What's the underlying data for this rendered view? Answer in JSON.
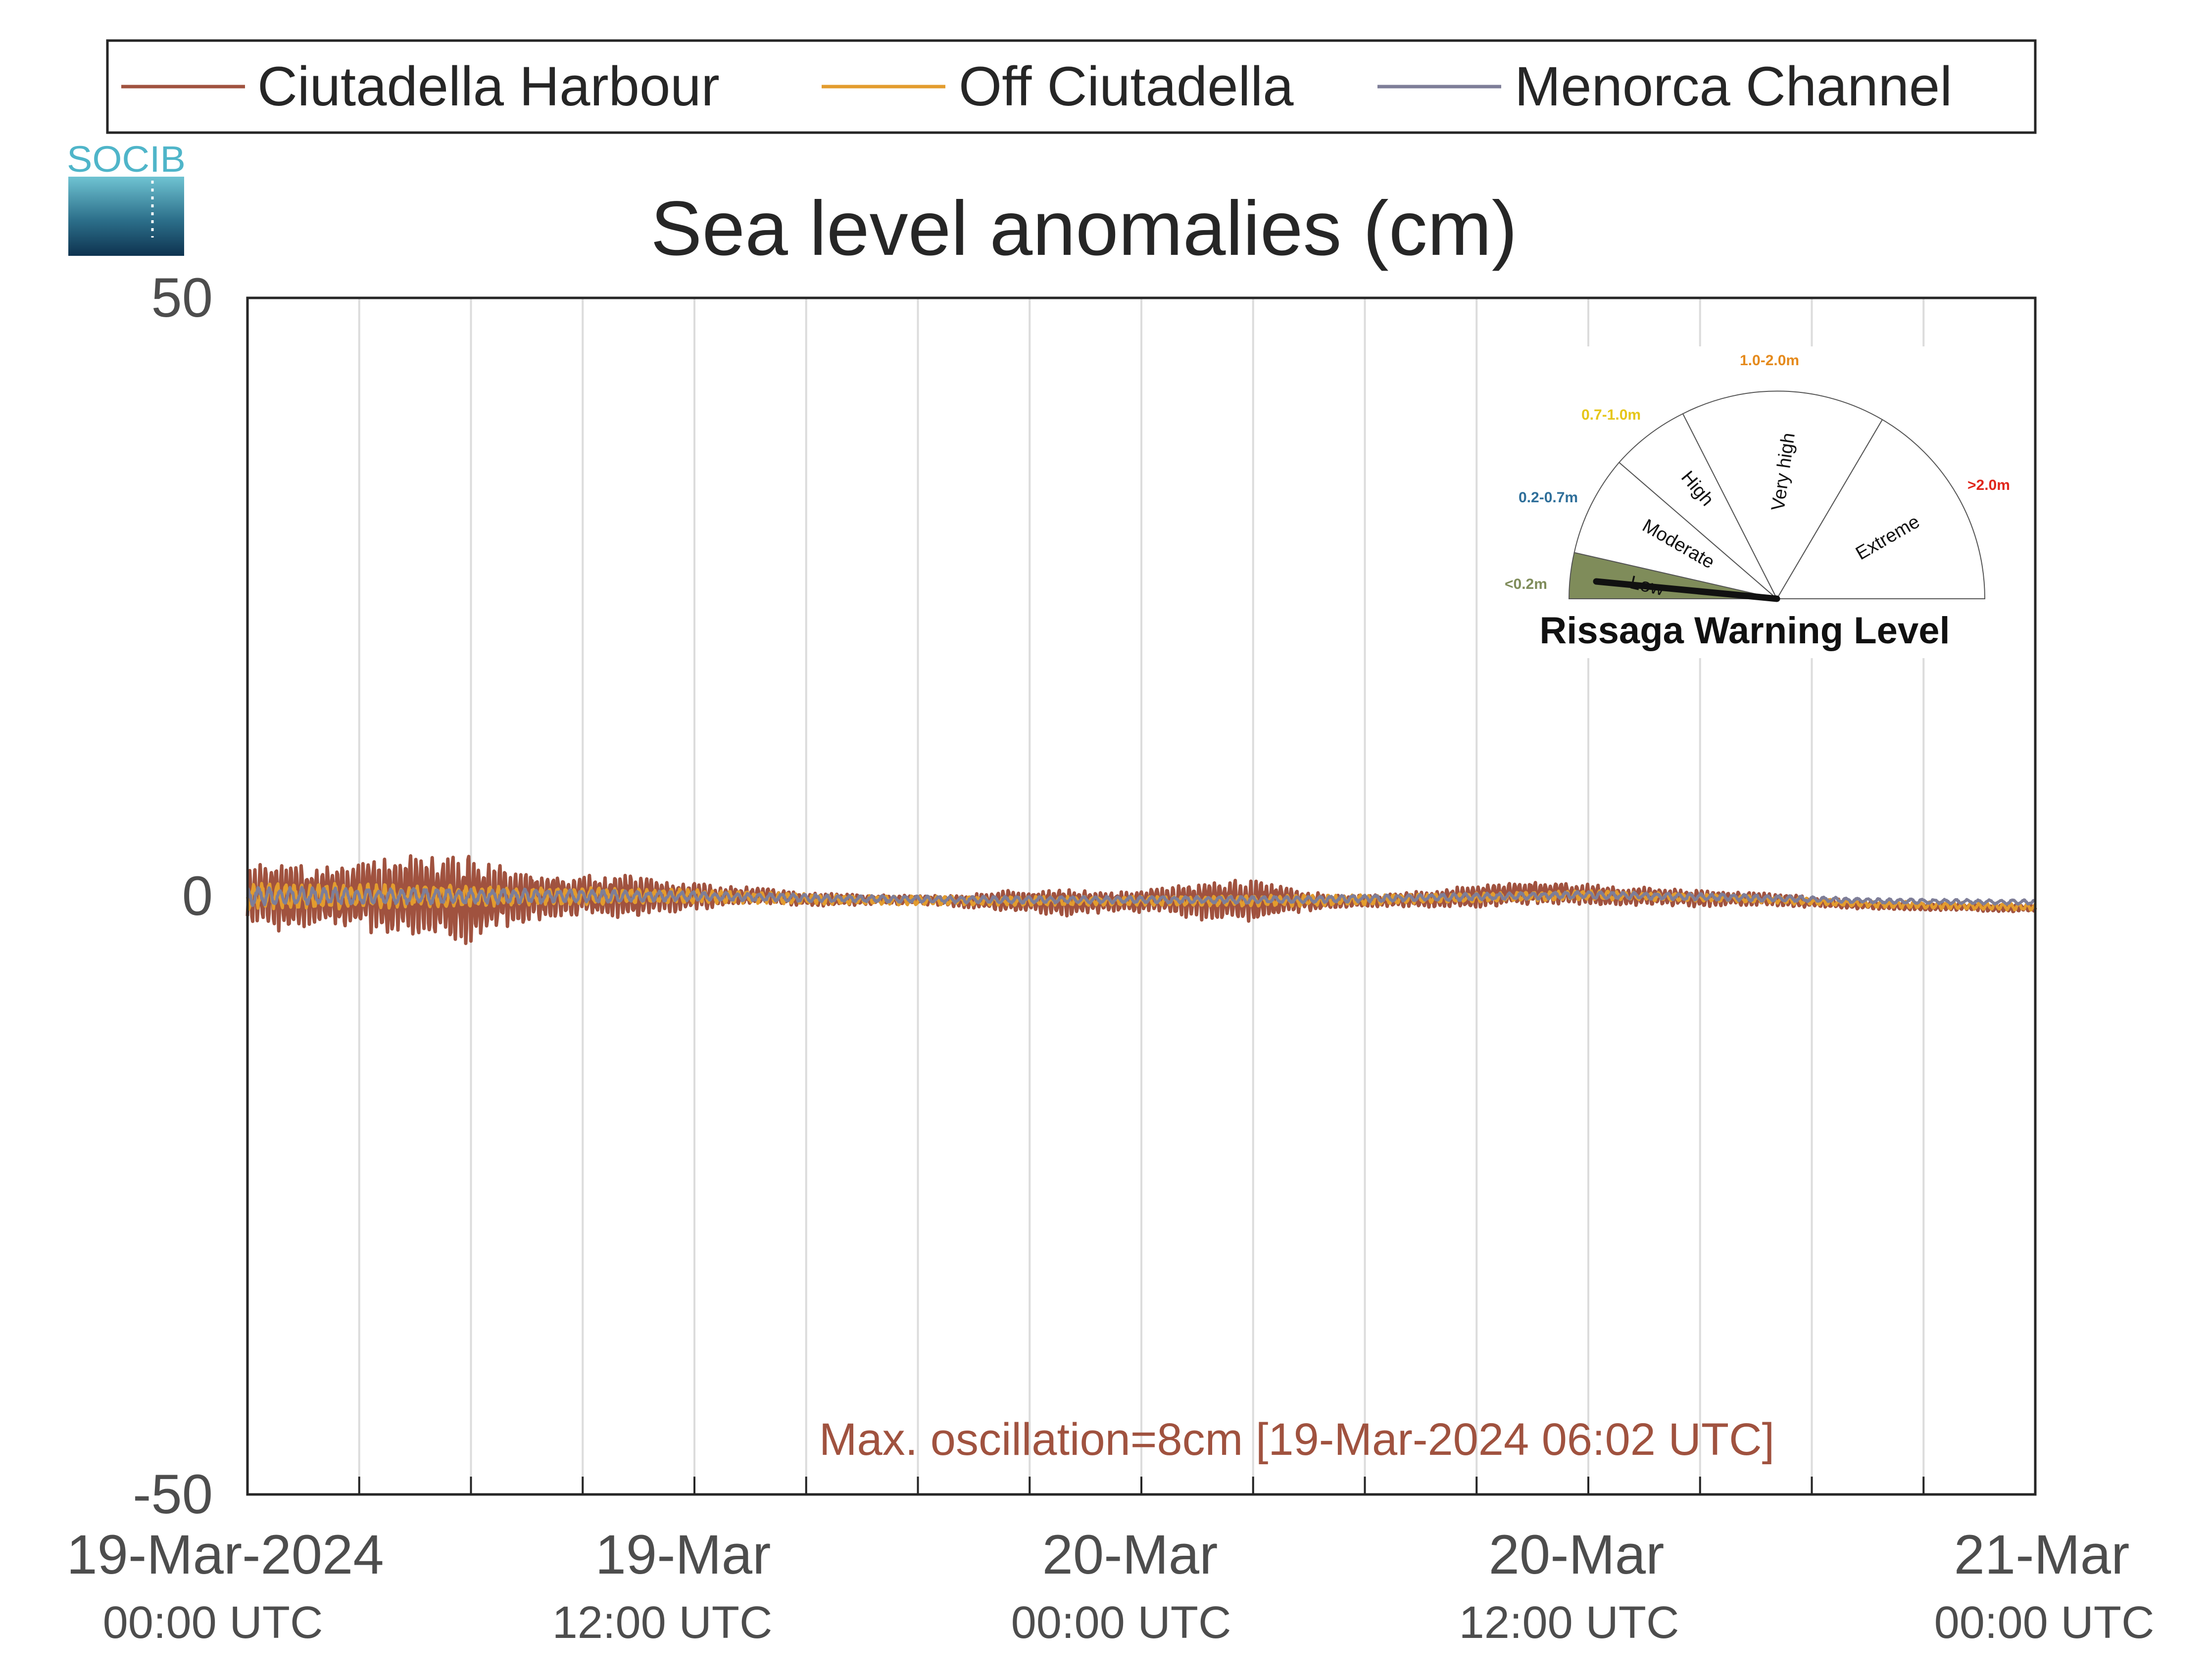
{
  "chart_data": {
    "type": "line",
    "title": "Sea level anomalies (cm)",
    "ylim": [
      -50,
      50
    ],
    "yticks": [
      "50",
      "0",
      "-50"
    ],
    "xlim": [
      "2024-03-19 00:00",
      "2024-03-21 00:00"
    ],
    "grid": "vertical lines every 3 hours",
    "xticks": [
      {
        "date": "19-Mar-2024",
        "time": "00:00 UTC"
      },
      {
        "date": "19-Mar",
        "time": "12:00 UTC"
      },
      {
        "date": "20-Mar",
        "time": "00:00 UTC"
      },
      {
        "date": "20-Mar",
        "time": "12:00 UTC"
      },
      {
        "date": "21-Mar",
        "time": "00:00 UTC"
      }
    ],
    "legend_position": "top",
    "series": [
      {
        "name": "Ciutadella Harbour",
        "color": "#a0523f",
        "x_hours": [
          0,
          1,
          2,
          3,
          4,
          5,
          6,
          7,
          8,
          9,
          10,
          11,
          12,
          13,
          14,
          15,
          16,
          17,
          18,
          19,
          20,
          21,
          22,
          23,
          24,
          25,
          26,
          27,
          28,
          29,
          30,
          31,
          32,
          33,
          34,
          35,
          36,
          37,
          38,
          39,
          40,
          41,
          42,
          43,
          44,
          45,
          46,
          47,
          48
        ],
        "envelope_cm": [
          2.5,
          3.0,
          2.5,
          3.0,
          3.5,
          3.5,
          4.0,
          2.5,
          2.0,
          1.8,
          2.0,
          1.5,
          1.2,
          0.8,
          0.7,
          0.6,
          0.5,
          0.4,
          0.4,
          0.5,
          0.8,
          1.0,
          1.2,
          0.9,
          1.0,
          1.3,
          1.8,
          1.8,
          1.2,
          0.6,
          0.5,
          0.6,
          0.8,
          1.0,
          1.0,
          1.0,
          0.9,
          0.8,
          0.8,
          0.7,
          0.6,
          0.5,
          0.5,
          0.4,
          0.3,
          0.3,
          0.3,
          0.3,
          0.3
        ],
        "offset_cm": [
          0,
          0,
          0,
          0,
          0,
          0,
          -0.5,
          0,
          0,
          0,
          0,
          0,
          0,
          0,
          0,
          -0.3,
          -0.3,
          -0.3,
          -0.3,
          -0.4,
          -0.4,
          -0.4,
          -0.5,
          -0.5,
          -0.4,
          -0.4,
          -0.4,
          -0.4,
          -0.3,
          -0.5,
          -0.4,
          -0.3,
          -0.2,
          0,
          0.2,
          0.3,
          0.1,
          0,
          0,
          -0.2,
          -0.2,
          -0.3,
          -0.5,
          -0.7,
          -0.8,
          -0.9,
          -0.9,
          -1.0,
          -1.0
        ]
      },
      {
        "name": "Off Ciutadella",
        "color": "#e39c2e",
        "x_hours": [
          0,
          4,
          8,
          12,
          16,
          20,
          24,
          28,
          32,
          36,
          40,
          44,
          48
        ],
        "envelope_cm": [
          1.2,
          1.0,
          0.8,
          0.6,
          0.4,
          0.4,
          0.4,
          0.5,
          0.4,
          0.4,
          0.3,
          0.3,
          0.3
        ],
        "offset_cm": [
          0,
          0,
          0,
          0,
          -0.3,
          -0.4,
          -0.4,
          -0.4,
          -0.2,
          0.1,
          -0.2,
          -0.7,
          -0.9
        ]
      },
      {
        "name": "Menorca Channel",
        "color": "#7e7e98",
        "x_hours": [
          0,
          4,
          8,
          12,
          16,
          20,
          24,
          28,
          32,
          36,
          40,
          44,
          48
        ],
        "envelope_cm": [
          0.8,
          0.7,
          0.6,
          0.4,
          0.3,
          0.3,
          0.3,
          0.3,
          0.3,
          0.3,
          0.3,
          0.2,
          0.2
        ],
        "offset_cm": [
          0,
          0,
          0,
          0,
          -0.2,
          -0.3,
          -0.3,
          -0.3,
          -0.1,
          0.1,
          -0.1,
          -0.4,
          -0.5
        ]
      }
    ],
    "annotation": "Max. oscillation=8cm [19-Mar-2024 06:02 UTC]",
    "annotation_color": "#a0523f"
  },
  "logo": {
    "text": "SOCIB"
  },
  "gauge": {
    "title": "Rissaga Warning Level",
    "current_level": "Low",
    "needle_fraction": 0.04,
    "levels": [
      {
        "name": "Low",
        "range": "<0.2m",
        "color": "#7f8c5a"
      },
      {
        "name": "Moderate",
        "range": "0.2-0.7m",
        "color": "#2f6f9a"
      },
      {
        "name": "High",
        "range": "0.7-1.0m",
        "color": "#e6c619"
      },
      {
        "name": "Very high",
        "range": "1.0-2.0m",
        "color": "#e58a1c"
      },
      {
        "name": "Extreme",
        "range": ">2.0m",
        "color": "#e0261b"
      }
    ]
  }
}
